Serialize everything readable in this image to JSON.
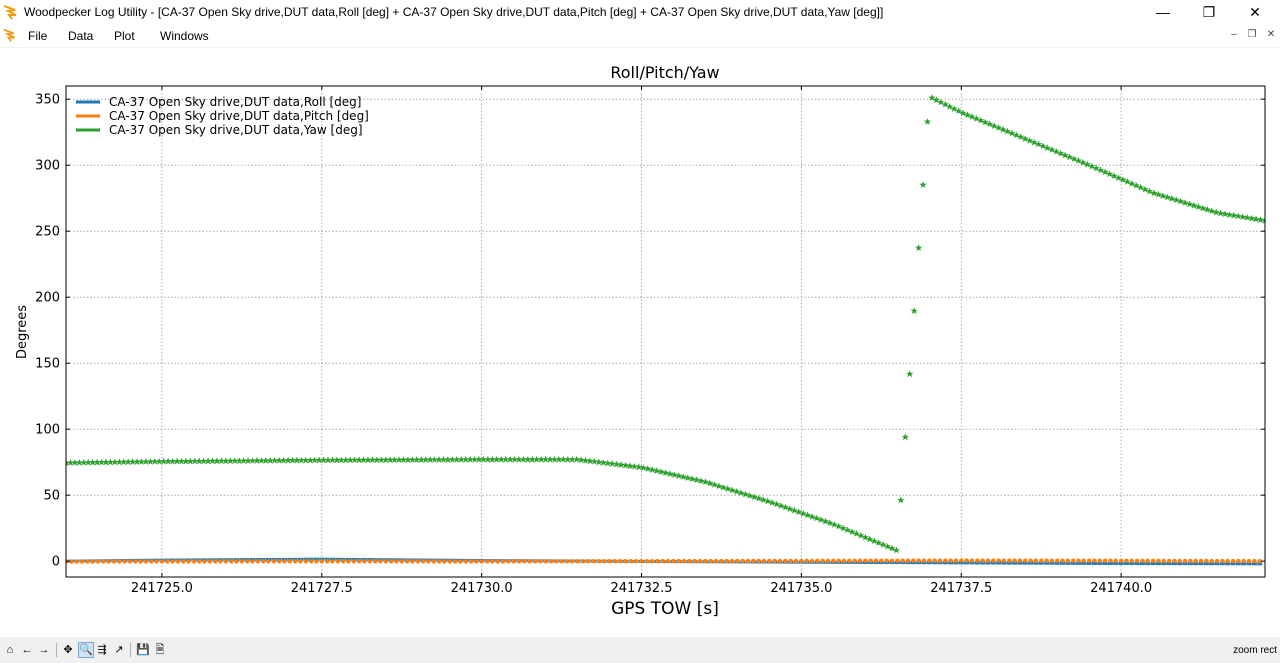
{
  "window": {
    "title": "Woodpecker Log Utility - [CA-37 Open Sky drive,DUT data,Roll [deg] + CA-37 Open Sky drive,DUT data,Pitch [deg] + CA-37 Open Sky drive,DUT data,Yaw [deg]]",
    "minimize_glyph": "—",
    "restore_glyph": "❐",
    "close_glyph": "✕"
  },
  "menu": {
    "items": [
      "File",
      "Data",
      "Plot",
      "Windows"
    ],
    "mdi_minimize": "–",
    "mdi_restore": "❐",
    "mdi_close": "✕"
  },
  "toolbar": {
    "icons": [
      "home-icon",
      "back-arrow-icon",
      "forward-arrow-icon",
      "pan-icon",
      "zoom-icon",
      "subplots-icon",
      "edit-curves-icon",
      "save-icon",
      "export-icon"
    ],
    "glyphs": [
      "⌂",
      "←",
      "→",
      "✥",
      "🔍",
      "⇶",
      "↗",
      "💾",
      "🗎"
    ],
    "status": "zoom rect"
  },
  "colors": {
    "roll": "#1f77b4",
    "pitch": "#ff7f0e",
    "yaw": "#2ca02c"
  },
  "chart_data": {
    "type": "line",
    "title": "Roll/Pitch/Yaw",
    "xlabel": "GPS TOW [s]",
    "ylabel": "Degrees",
    "xlim": [
      241723.5,
      241742.25
    ],
    "ylim": [
      -12,
      360
    ],
    "x_ticks": [
      241725.0,
      241727.5,
      241730.0,
      241732.5,
      241735.0,
      241737.5,
      241740.0
    ],
    "x_tick_labels": [
      "241725.0",
      "241727.5",
      "241730.0",
      "241732.5",
      "241735.0",
      "241737.5",
      "241740.0"
    ],
    "y_ticks": [
      0,
      50,
      100,
      150,
      200,
      250,
      300,
      350
    ],
    "y_tick_labels": [
      "0",
      "50",
      "100",
      "150",
      "200",
      "250",
      "300",
      "350"
    ],
    "grid": true,
    "legend_position": "top-left",
    "series": [
      {
        "name": "CA-37 Open Sky drive,DUT data,Roll [deg]",
        "marker": "dash",
        "x": [
          241723.5,
          241725.0,
          241727.5,
          241730.0,
          241732.5,
          241735.0,
          241737.5,
          241740.0,
          241742.25
        ],
        "y": [
          0.0,
          0.8,
          1.5,
          0.5,
          -0.2,
          -0.8,
          -1.3,
          -1.8,
          -2.0
        ]
      },
      {
        "name": "CA-37 Open Sky drive,DUT data,Pitch [deg]",
        "marker": "dot",
        "x": [
          241723.5,
          241725.0,
          241727.5,
          241730.0,
          241732.5,
          241735.0,
          241737.5,
          241740.0,
          241742.25
        ],
        "y": [
          -0.3,
          -0.2,
          -0.1,
          -0.2,
          0.0,
          0.2,
          0.5,
          0.3,
          0.0
        ]
      },
      {
        "name": "CA-37 Open Sky drive,DUT data,Yaw [deg]",
        "marker": "star",
        "x": [
          241723.5,
          241725.0,
          241727.5,
          241730.0,
          241731.5,
          241732.5,
          241733.5,
          241734.5,
          241735.5,
          241736.5,
          241737.0,
          241737.5,
          241738.5,
          241739.5,
          241740.5,
          241741.5,
          241742.25
        ],
        "y": [
          74.5,
          75.5,
          76.5,
          77.0,
          77.0,
          71.0,
          60.0,
          45.0,
          28.0,
          8.0,
          352.0,
          340.0,
          320.0,
          300.0,
          279.0,
          264.0,
          258.0
        ]
      }
    ]
  }
}
